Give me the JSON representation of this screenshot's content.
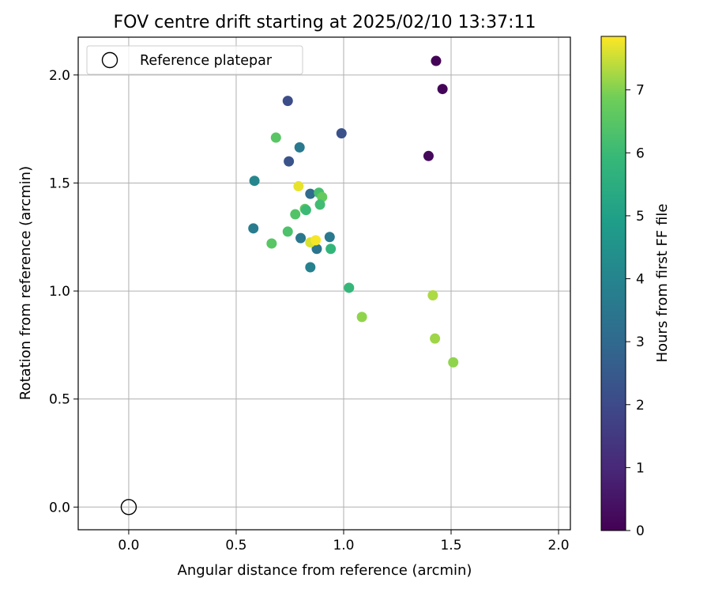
{
  "chart_data": {
    "type": "scatter",
    "title": "FOV centre drift starting at 2025/02/10 13:37:11",
    "xlabel": "Angular distance from reference (arcmin)",
    "ylabel": "Rotation from reference (arcmin)",
    "xlim": [
      -0.235,
      2.055
    ],
    "ylim": [
      -0.105,
      2.175
    ],
    "xticks": [
      0.0,
      0.5,
      1.0,
      1.5,
      2.0
    ],
    "xtick_labels": [
      "0.0",
      "0.5",
      "1.0",
      "1.5",
      "2.0"
    ],
    "yticks": [
      0.0,
      0.5,
      1.0,
      1.5,
      2.0
    ],
    "ytick_labels": [
      "0.0",
      "0.5",
      "1.0",
      "1.5",
      "2.0"
    ],
    "grid": true,
    "legend": {
      "location": "upper-left",
      "entries": [
        {
          "label": "Reference platepar",
          "marker": "hollow-circle"
        }
      ]
    },
    "reference_point": {
      "x": 0.0,
      "y": 0.0
    },
    "colorbar": {
      "label": "Hours from first FF file",
      "min": 0,
      "max": 7.85,
      "ticks": [
        0,
        1,
        2,
        3,
        4,
        5,
        6,
        7
      ],
      "colormap": "viridis"
    },
    "series": [
      {
        "name": "FOV centre drift",
        "points": [
          {
            "x": 1.43,
            "y": 2.065,
            "c": 0.05
          },
          {
            "x": 1.46,
            "y": 1.935,
            "c": 0.1
          },
          {
            "x": 1.395,
            "y": 1.625,
            "c": 0.2
          },
          {
            "x": 0.74,
            "y": 1.88,
            "c": 2.1
          },
          {
            "x": 0.99,
            "y": 1.73,
            "c": 2.2
          },
          {
            "x": 0.745,
            "y": 1.6,
            "c": 2.3
          },
          {
            "x": 0.795,
            "y": 1.665,
            "c": 3.6
          },
          {
            "x": 0.585,
            "y": 1.51,
            "c": 4.1
          },
          {
            "x": 0.845,
            "y": 1.45,
            "c": 3.1
          },
          {
            "x": 0.58,
            "y": 1.29,
            "c": 3.7
          },
          {
            "x": 0.8,
            "y": 1.245,
            "c": 3.5
          },
          {
            "x": 0.875,
            "y": 1.195,
            "c": 3.4
          },
          {
            "x": 0.935,
            "y": 1.25,
            "c": 3.6
          },
          {
            "x": 0.845,
            "y": 1.11,
            "c": 3.9
          },
          {
            "x": 0.685,
            "y": 1.71,
            "c": 6.5
          },
          {
            "x": 0.79,
            "y": 1.485,
            "c": 7.7
          },
          {
            "x": 0.885,
            "y": 1.455,
            "c": 6.2
          },
          {
            "x": 0.9,
            "y": 1.435,
            "c": 6.7
          },
          {
            "x": 0.89,
            "y": 1.4,
            "c": 6.1
          },
          {
            "x": 0.82,
            "y": 1.38,
            "c": 6.6
          },
          {
            "x": 0.825,
            "y": 1.375,
            "c": 6.0
          },
          {
            "x": 0.775,
            "y": 1.355,
            "c": 6.4
          },
          {
            "x": 0.74,
            "y": 1.275,
            "c": 6.3
          },
          {
            "x": 0.665,
            "y": 1.22,
            "c": 6.5
          },
          {
            "x": 0.845,
            "y": 1.225,
            "c": 7.6
          },
          {
            "x": 0.87,
            "y": 1.235,
            "c": 7.8
          },
          {
            "x": 0.94,
            "y": 1.195,
            "c": 5.8
          },
          {
            "x": 1.025,
            "y": 1.015,
            "c": 5.9
          },
          {
            "x": 1.085,
            "y": 0.88,
            "c": 7.1
          },
          {
            "x": 1.415,
            "y": 0.98,
            "c": 7.3
          },
          {
            "x": 1.425,
            "y": 0.78,
            "c": 7.2
          },
          {
            "x": 1.51,
            "y": 0.67,
            "c": 7.1
          }
        ]
      }
    ]
  }
}
